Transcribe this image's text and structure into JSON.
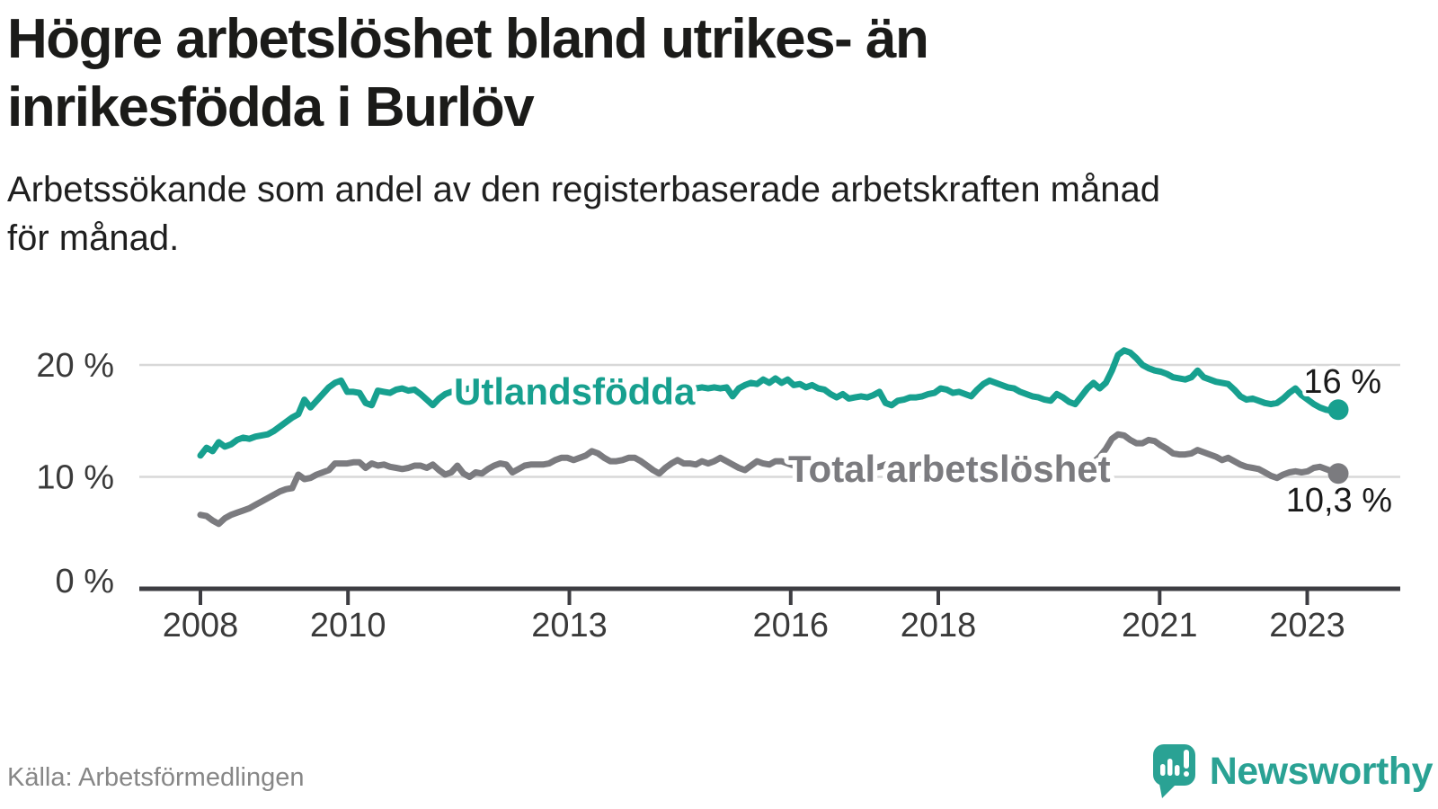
{
  "title": {
    "line1": "Högre arbetslöshet bland utrikes- än",
    "line2": "inrikesfödda i Burlöv"
  },
  "subtitle": {
    "line1": "Arbetssökande som andel av den registerbaserade arbetskraften månad",
    "line2": "för månad."
  },
  "chart_data": {
    "type": "line",
    "unit": "%",
    "frequency": "monthly",
    "x_start": "2008-01",
    "x_end": "2023-07",
    "x_ticks": [
      2008,
      2010,
      2013,
      2016,
      2018,
      2021,
      2023
    ],
    "y_ticks": [
      {
        "value": 0,
        "label": "0 %"
      },
      {
        "value": 10,
        "label": "10 %"
      },
      {
        "value": 20,
        "label": "20 %"
      }
    ],
    "ylim": [
      0,
      23
    ],
    "grid": "horizontal",
    "legend_position": "inline-labels",
    "series": [
      {
        "name": "Utlandsfödda",
        "color": "#17a08f",
        "end_label": "16 %",
        "end_value": 16.0,
        "values": [
          11.9,
          12.6,
          12.3,
          13.1,
          12.7,
          12.9,
          13.3,
          13.5,
          13.4,
          13.6,
          13.7,
          13.8,
          14.1,
          14.5,
          14.9,
          15.3,
          15.6,
          16.9,
          16.2,
          16.8,
          17.4,
          18.0,
          18.4,
          18.6,
          17.6,
          17.6,
          17.5,
          16.6,
          16.4,
          17.7,
          17.6,
          17.5,
          17.8,
          17.9,
          17.7,
          17.8,
          17.4,
          16.9,
          16.4,
          17.0,
          17.4,
          17.6,
          17.7,
          17.8,
          17.9,
          17.8,
          17.7,
          17.9,
          18.0,
          17.8,
          17.6,
          17.7,
          17.9,
          17.8,
          17.7,
          17.8,
          18.0,
          17.9,
          17.8,
          17.9,
          18.0,
          17.8,
          17.7,
          17.8,
          17.9,
          18.0,
          17.8,
          17.7,
          17.8,
          17.9,
          17.8,
          17.9,
          17.8,
          17.9,
          18.0,
          17.9,
          17.8,
          17.9,
          18.0,
          17.9,
          17.8,
          17.9,
          18.0,
          17.9,
          18.0,
          17.9,
          18.0,
          17.2,
          17.9,
          18.2,
          18.4,
          18.3,
          18.7,
          18.4,
          18.8,
          18.4,
          18.7,
          18.2,
          18.3,
          18.0,
          18.2,
          17.9,
          17.8,
          17.4,
          17.1,
          17.4,
          17.0,
          17.1,
          17.2,
          17.1,
          17.3,
          17.6,
          16.6,
          16.4,
          16.8,
          16.9,
          17.1,
          17.1,
          17.2,
          17.4,
          17.5,
          17.9,
          17.8,
          17.5,
          17.6,
          17.4,
          17.2,
          17.8,
          18.3,
          18.6,
          18.4,
          18.2,
          18.0,
          17.9,
          17.6,
          17.4,
          17.2,
          17.1,
          16.9,
          16.8,
          17.4,
          17.1,
          16.7,
          16.5,
          17.2,
          17.9,
          18.4,
          17.9,
          18.4,
          19.5,
          20.9,
          21.3,
          21.1,
          20.6,
          20.0,
          19.7,
          19.5,
          19.4,
          19.2,
          18.9,
          18.8,
          18.7,
          18.9,
          19.5,
          18.9,
          18.7,
          18.5,
          18.4,
          18.3,
          17.8,
          17.2,
          16.9,
          17.0,
          16.8,
          16.6,
          16.5,
          16.6,
          17.0,
          17.5,
          17.9,
          17.3,
          16.9,
          16.5,
          16.2,
          16.0,
          15.9,
          16.0
        ]
      },
      {
        "name": "Total arbetslöshet",
        "color": "#7b7b7f",
        "end_label": "10,3 %",
        "end_value": 10.3,
        "values": [
          6.6,
          6.5,
          6.1,
          5.8,
          6.3,
          6.6,
          6.8,
          7.0,
          7.2,
          7.5,
          7.8,
          8.1,
          8.4,
          8.7,
          8.9,
          9.0,
          10.2,
          9.8,
          9.9,
          10.2,
          10.4,
          10.6,
          11.2,
          11.2,
          11.2,
          11.3,
          11.3,
          10.8,
          11.2,
          11.0,
          11.1,
          10.9,
          10.8,
          10.7,
          10.8,
          11.0,
          11.0,
          10.8,
          11.1,
          10.6,
          10.2,
          10.4,
          11.0,
          10.3,
          10.0,
          10.4,
          10.3,
          10.7,
          11.0,
          11.2,
          11.1,
          10.4,
          10.7,
          11.0,
          11.1,
          11.1,
          11.1,
          11.2,
          11.5,
          11.7,
          11.7,
          11.5,
          11.7,
          11.9,
          12.3,
          12.1,
          11.7,
          11.4,
          11.4,
          11.5,
          11.7,
          11.7,
          11.4,
          11.0,
          10.6,
          10.3,
          10.8,
          11.2,
          11.5,
          11.2,
          11.2,
          11.1,
          11.4,
          11.2,
          11.4,
          11.7,
          11.4,
          11.1,
          10.8,
          10.6,
          11.0,
          11.4,
          11.2,
          11.1,
          11.4,
          11.4,
          11.2,
          11.0,
          11.1,
          11.3,
          11.2,
          11.0,
          10.9,
          11.1,
          11.2,
          11.0,
          10.9,
          11.0,
          11.1,
          11.0,
          10.8,
          10.9,
          11.1,
          11.0,
          10.8,
          10.7,
          10.9,
          11.0,
          11.1,
          11.0,
          10.9,
          11.0,
          10.8,
          10.7,
          10.8,
          10.6,
          10.5,
          10.7,
          10.8,
          10.9,
          10.8,
          10.7,
          10.8,
          10.9,
          10.7,
          10.6,
          10.7,
          10.8,
          10.6,
          10.5,
          10.7,
          10.8,
          10.9,
          11.0,
          11.0,
          11.1,
          11.3,
          11.8,
          12.5,
          13.4,
          13.8,
          13.7,
          13.3,
          13.0,
          13.0,
          13.3,
          13.2,
          12.8,
          12.5,
          12.1,
          12.0,
          12.0,
          12.1,
          12.4,
          12.2,
          12.0,
          11.8,
          11.5,
          11.7,
          11.4,
          11.1,
          10.9,
          10.8,
          10.7,
          10.4,
          10.1,
          9.9,
          10.2,
          10.4,
          10.5,
          10.4,
          10.5,
          10.8,
          10.9,
          10.7,
          10.5,
          10.3
        ]
      }
    ],
    "colors": {
      "grid": "#d8d8d8",
      "axis": "#3d3d42",
      "tick_text": "#3a3a3a"
    }
  },
  "source": "Källa: Arbetsförmedlingen",
  "branding": {
    "name": "Newsworthy",
    "color": "#2aa294",
    "icon": "speech-bubble-bar-chart-exclamation"
  }
}
